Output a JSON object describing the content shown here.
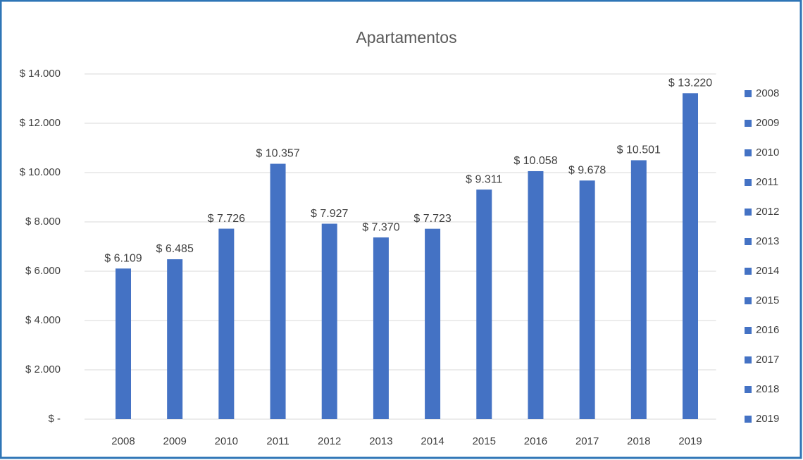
{
  "chart_data": {
    "type": "bar",
    "title": "Apartamentos",
    "categories": [
      "2008",
      "2009",
      "2010",
      "2011",
      "2012",
      "2013",
      "2014",
      "2015",
      "2016",
      "2017",
      "2018",
      "2019"
    ],
    "values": [
      6109,
      6485,
      7726,
      10357,
      7927,
      7370,
      7723,
      9311,
      10058,
      9678,
      10501,
      13220
    ],
    "value_labels": [
      "$ 6.109",
      "$ 6.485",
      "$ 7.726",
      "$ 10.357",
      "$ 7.927",
      "$ 7.370",
      "$ 7.723",
      "$ 9.311",
      "$ 10.058",
      "$ 9.678",
      "$ 10.501",
      "$ 13.220"
    ],
    "color": "#4472c4",
    "ylim": [
      0,
      14000
    ],
    "yticks": [
      {
        "value": 0,
        "label": "$ -"
      },
      {
        "value": 2000,
        "label": "$ 2.000"
      },
      {
        "value": 4000,
        "label": "$ 4.000"
      },
      {
        "value": 6000,
        "label": "$ 6.000"
      },
      {
        "value": 8000,
        "label": "$ 8.000"
      },
      {
        "value": 10000,
        "label": "$ 10.000"
      },
      {
        "value": 12000,
        "label": "$ 12.000"
      },
      {
        "value": 14000,
        "label": "$ 14.000"
      }
    ],
    "grid": true,
    "legend": "right"
  }
}
